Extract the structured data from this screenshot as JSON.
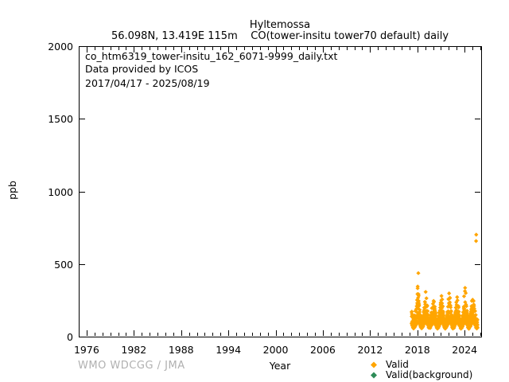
{
  "header": {
    "title": "Hyltemossa",
    "subtitle": "56.098N, 13.419E 115m    CO(tower-insitu tower70 default) daily"
  },
  "plot_annotations": {
    "filename": "co_htm6319_tower-insitu_162_6071-9999_daily.txt",
    "provider": "Data provided by ICOS",
    "date_range": "2017/04/17 - 2025/08/19"
  },
  "footer": {
    "watermark": "WMO WDCGG / JMA",
    "color": "#b0b0b0"
  },
  "chart_data": {
    "type": "scatter",
    "title": "Hyltemossa",
    "xlabel": "Year",
    "ylabel": "ppb",
    "xlim": [
      1975,
      2026.1
    ],
    "ylim": [
      0,
      2000
    ],
    "xticks_major": [
      1976,
      1982,
      1988,
      1994,
      2000,
      2006,
      2012,
      2018,
      2024
    ],
    "xtick_minor_step": 1,
    "yticks": [
      0,
      500,
      1000,
      1500,
      2000
    ],
    "grid": false,
    "legend_position": "below-right",
    "axis_color": "#000000",
    "series": [
      {
        "name": "Valid",
        "color": "#FFA500",
        "marker": "diamond",
        "date_range": "2017/04/17 - 2025/08/19",
        "points_per_month": 8,
        "monthly_envelope": [
          [
            2017,
            4,
            88,
            172
          ],
          [
            2017,
            5,
            75,
            150
          ],
          [
            2017,
            6,
            62,
            126
          ],
          [
            2017,
            7,
            56,
            116
          ],
          [
            2017,
            8,
            60,
            130
          ],
          [
            2017,
            9,
            70,
            146
          ],
          [
            2017,
            10,
            80,
            176
          ],
          [
            2017,
            11,
            86,
            210
          ],
          [
            2017,
            12,
            90,
            252
          ],
          [
            2018,
            1,
            94,
            345
          ],
          [
            2018,
            2,
            95,
            292
          ],
          [
            2018,
            3,
            98,
            230
          ],
          [
            2018,
            4,
            88,
            184
          ],
          [
            2018,
            5,
            75,
            150
          ],
          [
            2018,
            6,
            62,
            122
          ],
          [
            2018,
            7,
            56,
            114
          ],
          [
            2018,
            8,
            60,
            126
          ],
          [
            2018,
            9,
            70,
            142
          ],
          [
            2018,
            10,
            80,
            170
          ],
          [
            2018,
            11,
            86,
            200
          ],
          [
            2018,
            12,
            90,
            240
          ],
          [
            2019,
            1,
            94,
            308
          ],
          [
            2019,
            2,
            95,
            264
          ],
          [
            2019,
            3,
            97,
            215
          ],
          [
            2019,
            4,
            87,
            176
          ],
          [
            2019,
            5,
            75,
            146
          ],
          [
            2019,
            6,
            61,
            120
          ],
          [
            2019,
            7,
            55,
            111
          ],
          [
            2019,
            8,
            60,
            124
          ],
          [
            2019,
            9,
            70,
            141
          ],
          [
            2019,
            10,
            79,
            166
          ],
          [
            2019,
            11,
            85,
            196
          ],
          [
            2019,
            12,
            89,
            226
          ],
          [
            2020,
            1,
            93,
            246
          ],
          [
            2020,
            2,
            94,
            240
          ],
          [
            2020,
            3,
            95,
            206
          ],
          [
            2020,
            4,
            85,
            170
          ],
          [
            2020,
            5,
            74,
            145
          ],
          [
            2020,
            6,
            60,
            116
          ],
          [
            2020,
            7,
            55,
            110
          ],
          [
            2020,
            8,
            59,
            121
          ],
          [
            2020,
            9,
            69,
            139
          ],
          [
            2020,
            10,
            79,
            166
          ],
          [
            2020,
            11,
            85,
            200
          ],
          [
            2020,
            12,
            89,
            234
          ],
          [
            2021,
            1,
            94,
            280
          ],
          [
            2021,
            2,
            95,
            256
          ],
          [
            2021,
            3,
            96,
            210
          ],
          [
            2021,
            4,
            86,
            174
          ],
          [
            2021,
            5,
            74,
            146
          ],
          [
            2021,
            6,
            61,
            119
          ],
          [
            2021,
            7,
            55,
            112
          ],
          [
            2021,
            8,
            60,
            123
          ],
          [
            2021,
            9,
            70,
            142
          ],
          [
            2021,
            10,
            80,
            170
          ],
          [
            2021,
            11,
            86,
            206
          ],
          [
            2021,
            12,
            90,
            258
          ],
          [
            2022,
            1,
            94,
            298
          ],
          [
            2022,
            2,
            95,
            268
          ],
          [
            2022,
            3,
            96,
            214
          ],
          [
            2022,
            4,
            86,
            176
          ],
          [
            2022,
            5,
            75,
            148
          ],
          [
            2022,
            6,
            61,
            118
          ],
          [
            2022,
            7,
            55,
            112
          ],
          [
            2022,
            8,
            60,
            124
          ],
          [
            2022,
            9,
            70,
            140
          ],
          [
            2022,
            10,
            80,
            168
          ],
          [
            2022,
            11,
            85,
            200
          ],
          [
            2022,
            12,
            89,
            236
          ],
          [
            2023,
            1,
            94,
            272
          ],
          [
            2023,
            2,
            94,
            250
          ],
          [
            2023,
            3,
            95,
            210
          ],
          [
            2023,
            4,
            85,
            172
          ],
          [
            2023,
            5,
            74,
            145
          ],
          [
            2023,
            6,
            60,
            118
          ],
          [
            2023,
            7,
            55,
            111
          ],
          [
            2023,
            8,
            59,
            122
          ],
          [
            2023,
            9,
            70,
            141
          ],
          [
            2023,
            10,
            80,
            168
          ],
          [
            2023,
            11,
            86,
            206
          ],
          [
            2023,
            12,
            90,
            278
          ],
          [
            2024,
            1,
            95,
            336
          ],
          [
            2024,
            2,
            95,
            300
          ],
          [
            2024,
            3,
            96,
            221
          ],
          [
            2024,
            4,
            86,
            178
          ],
          [
            2024,
            5,
            75,
            148
          ],
          [
            2024,
            6,
            61,
            120
          ],
          [
            2024,
            7,
            55,
            113
          ],
          [
            2024,
            8,
            60,
            124
          ],
          [
            2024,
            9,
            70,
            143
          ],
          [
            2024,
            10,
            80,
            171
          ],
          [
            2024,
            11,
            86,
            210
          ],
          [
            2024,
            12,
            90,
            246
          ],
          [
            2025,
            1,
            94,
            254
          ],
          [
            2025,
            2,
            95,
            246
          ],
          [
            2025,
            3,
            96,
            211
          ],
          [
            2025,
            4,
            86,
            176
          ],
          [
            2025,
            5,
            75,
            149
          ],
          [
            2025,
            6,
            61,
            121
          ],
          [
            2025,
            7,
            56,
            113
          ],
          [
            2025,
            8,
            60,
            118
          ]
        ],
        "outliers": [
          [
            2018.12,
            437
          ],
          [
            2025.45,
            658
          ],
          [
            2025.47,
            702
          ]
        ]
      },
      {
        "name": "Valid(background)",
        "color": "#2E8B57",
        "marker": "diamond",
        "monthly_envelope": [],
        "points_per_month": 0,
        "outliers": []
      }
    ]
  }
}
